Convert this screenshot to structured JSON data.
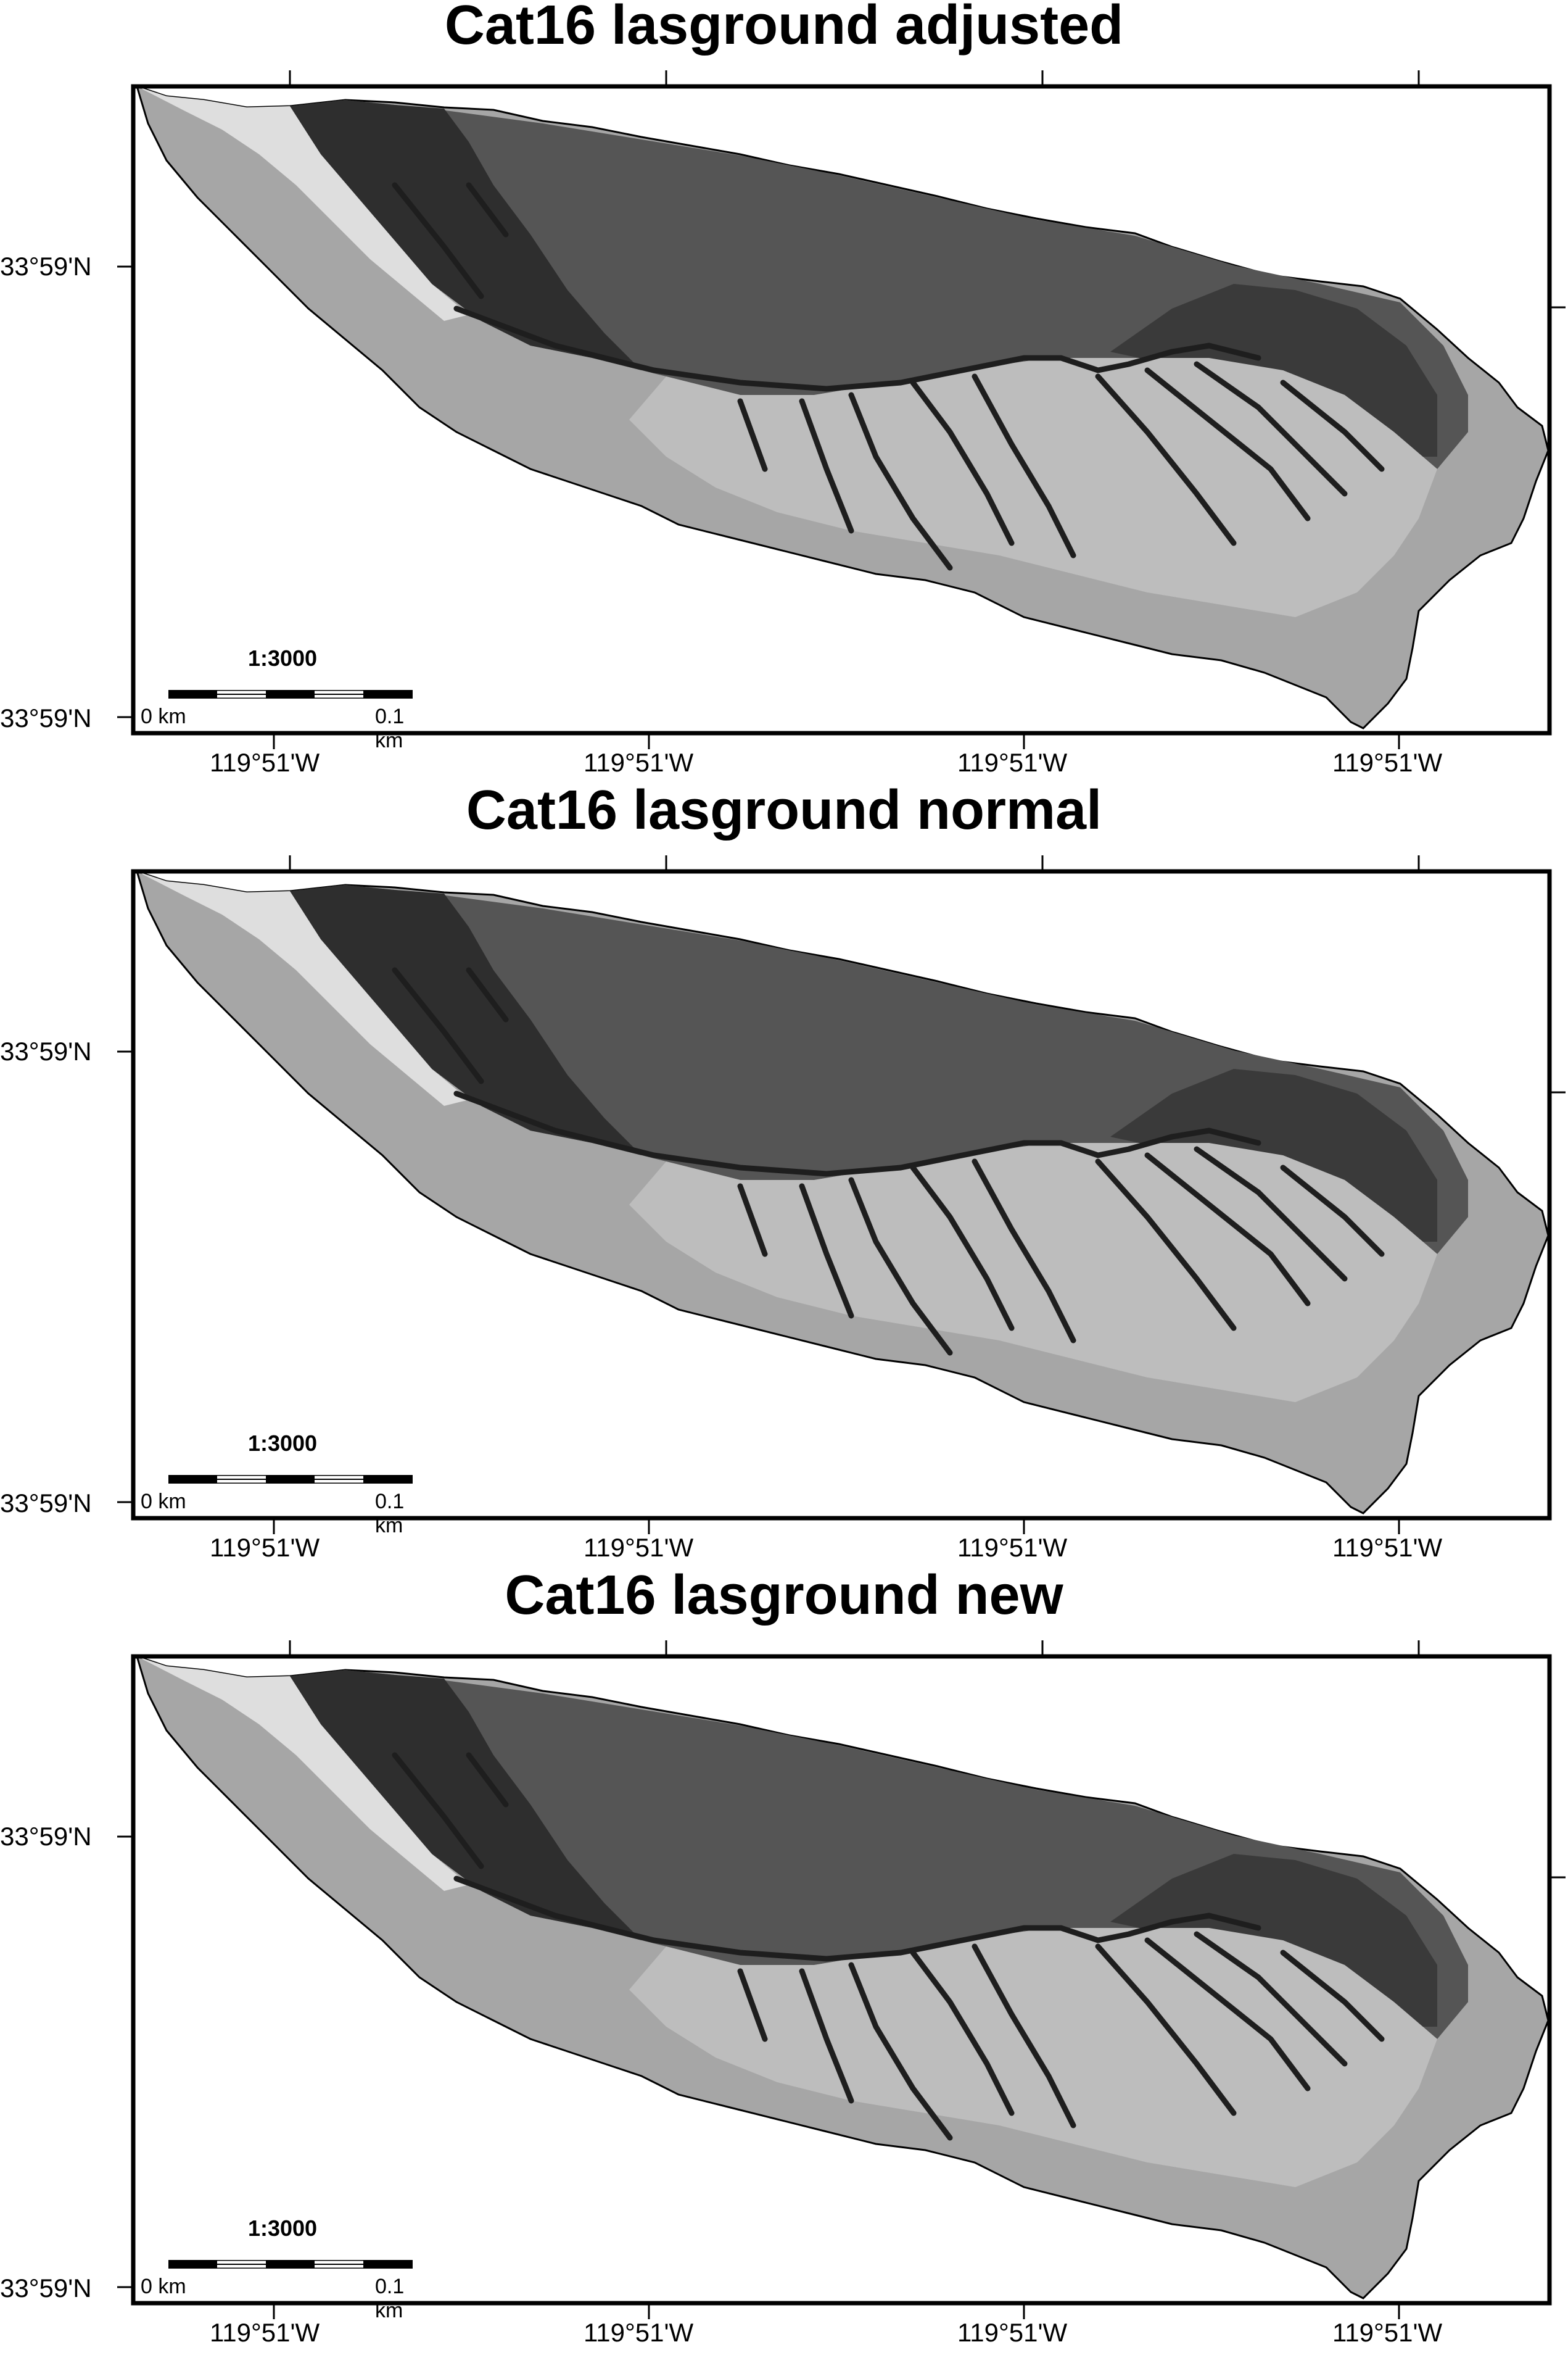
{
  "panels": [
    {
      "title": "Cat16 lasground adjusted",
      "lat_labels": [
        "33°59'N",
        "33°59'N"
      ],
      "lon_labels": [
        "119°51'W",
        "119°51'W",
        "119°51'W",
        "119°51'W"
      ],
      "scale": {
        "ratio": "1:3000",
        "start": "0 km",
        "end": "0.1 km"
      }
    },
    {
      "title": "Cat16 lasground normal",
      "lat_labels": [
        "33°59'N",
        "33°59'N"
      ],
      "lon_labels": [
        "119°51'W",
        "119°51'W",
        "119°51'W",
        "119°51'W"
      ],
      "scale": {
        "ratio": "1:3000",
        "start": "0 km",
        "end": "0.1 km"
      }
    },
    {
      "title": "Cat16 lasground new",
      "lat_labels": [
        "33°59'N",
        "33°59'N"
      ],
      "lon_labels": [
        "119°51'W",
        "119°51'W",
        "119°51'W",
        "119°51'W"
      ],
      "scale": {
        "ratio": "1:3000",
        "start": "0 km",
        "end": "0.1 km"
      }
    }
  ],
  "colors": {
    "frame": "#000000",
    "terrain_light": "#d8d8d8",
    "terrain_mid": "#8a8a8a",
    "terrain_dark": "#2a2a2a"
  }
}
